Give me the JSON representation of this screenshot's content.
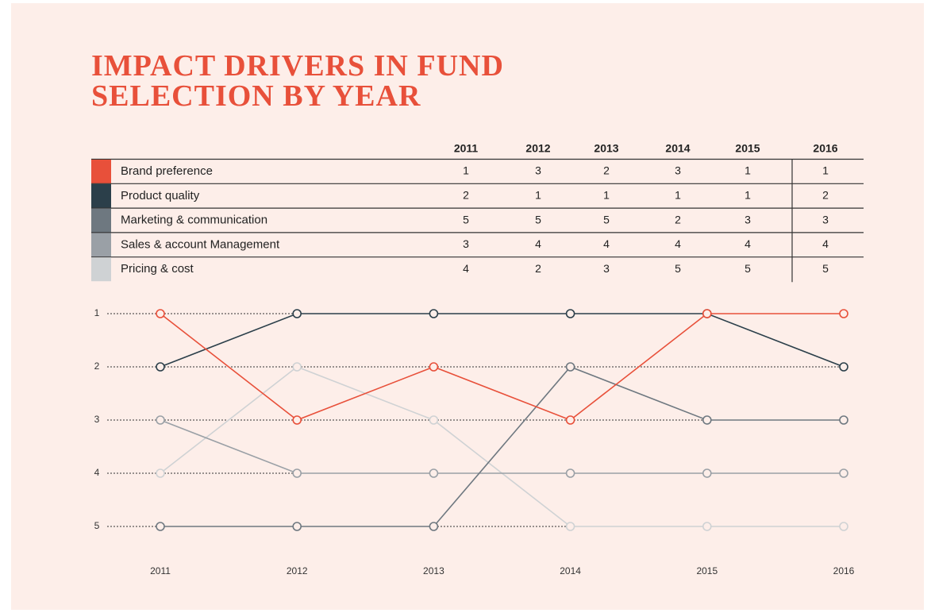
{
  "chart_data": {
    "type": "line",
    "title": "IMPACT DRIVERS IN FUND SELECTION BY YEAR",
    "categories": [
      "2011",
      "2012",
      "2013",
      "2014",
      "2015",
      "2016"
    ],
    "series": [
      {
        "name": "Brand preference",
        "color": "#e8503a",
        "values": [
          1,
          3,
          2,
          3,
          1,
          1
        ]
      },
      {
        "name": "Product quality",
        "color": "#2b3f4a",
        "values": [
          2,
          1,
          1,
          1,
          1,
          2
        ]
      },
      {
        "name": "Marketing & communication",
        "color": "#6e7880",
        "values": [
          5,
          5,
          5,
          2,
          3,
          3
        ]
      },
      {
        "name": "Sales & account Management",
        "color": "#9aa0a6",
        "values": [
          3,
          4,
          4,
          4,
          4,
          4
        ]
      },
      {
        "name": "Pricing & cost",
        "color": "#cfd2d4",
        "values": [
          4,
          2,
          3,
          5,
          5,
          5
        ]
      }
    ],
    "ylim": [
      1,
      5
    ],
    "yticks": [
      1,
      2,
      3,
      4,
      5
    ],
    "y_inverted": true,
    "grid": true
  }
}
